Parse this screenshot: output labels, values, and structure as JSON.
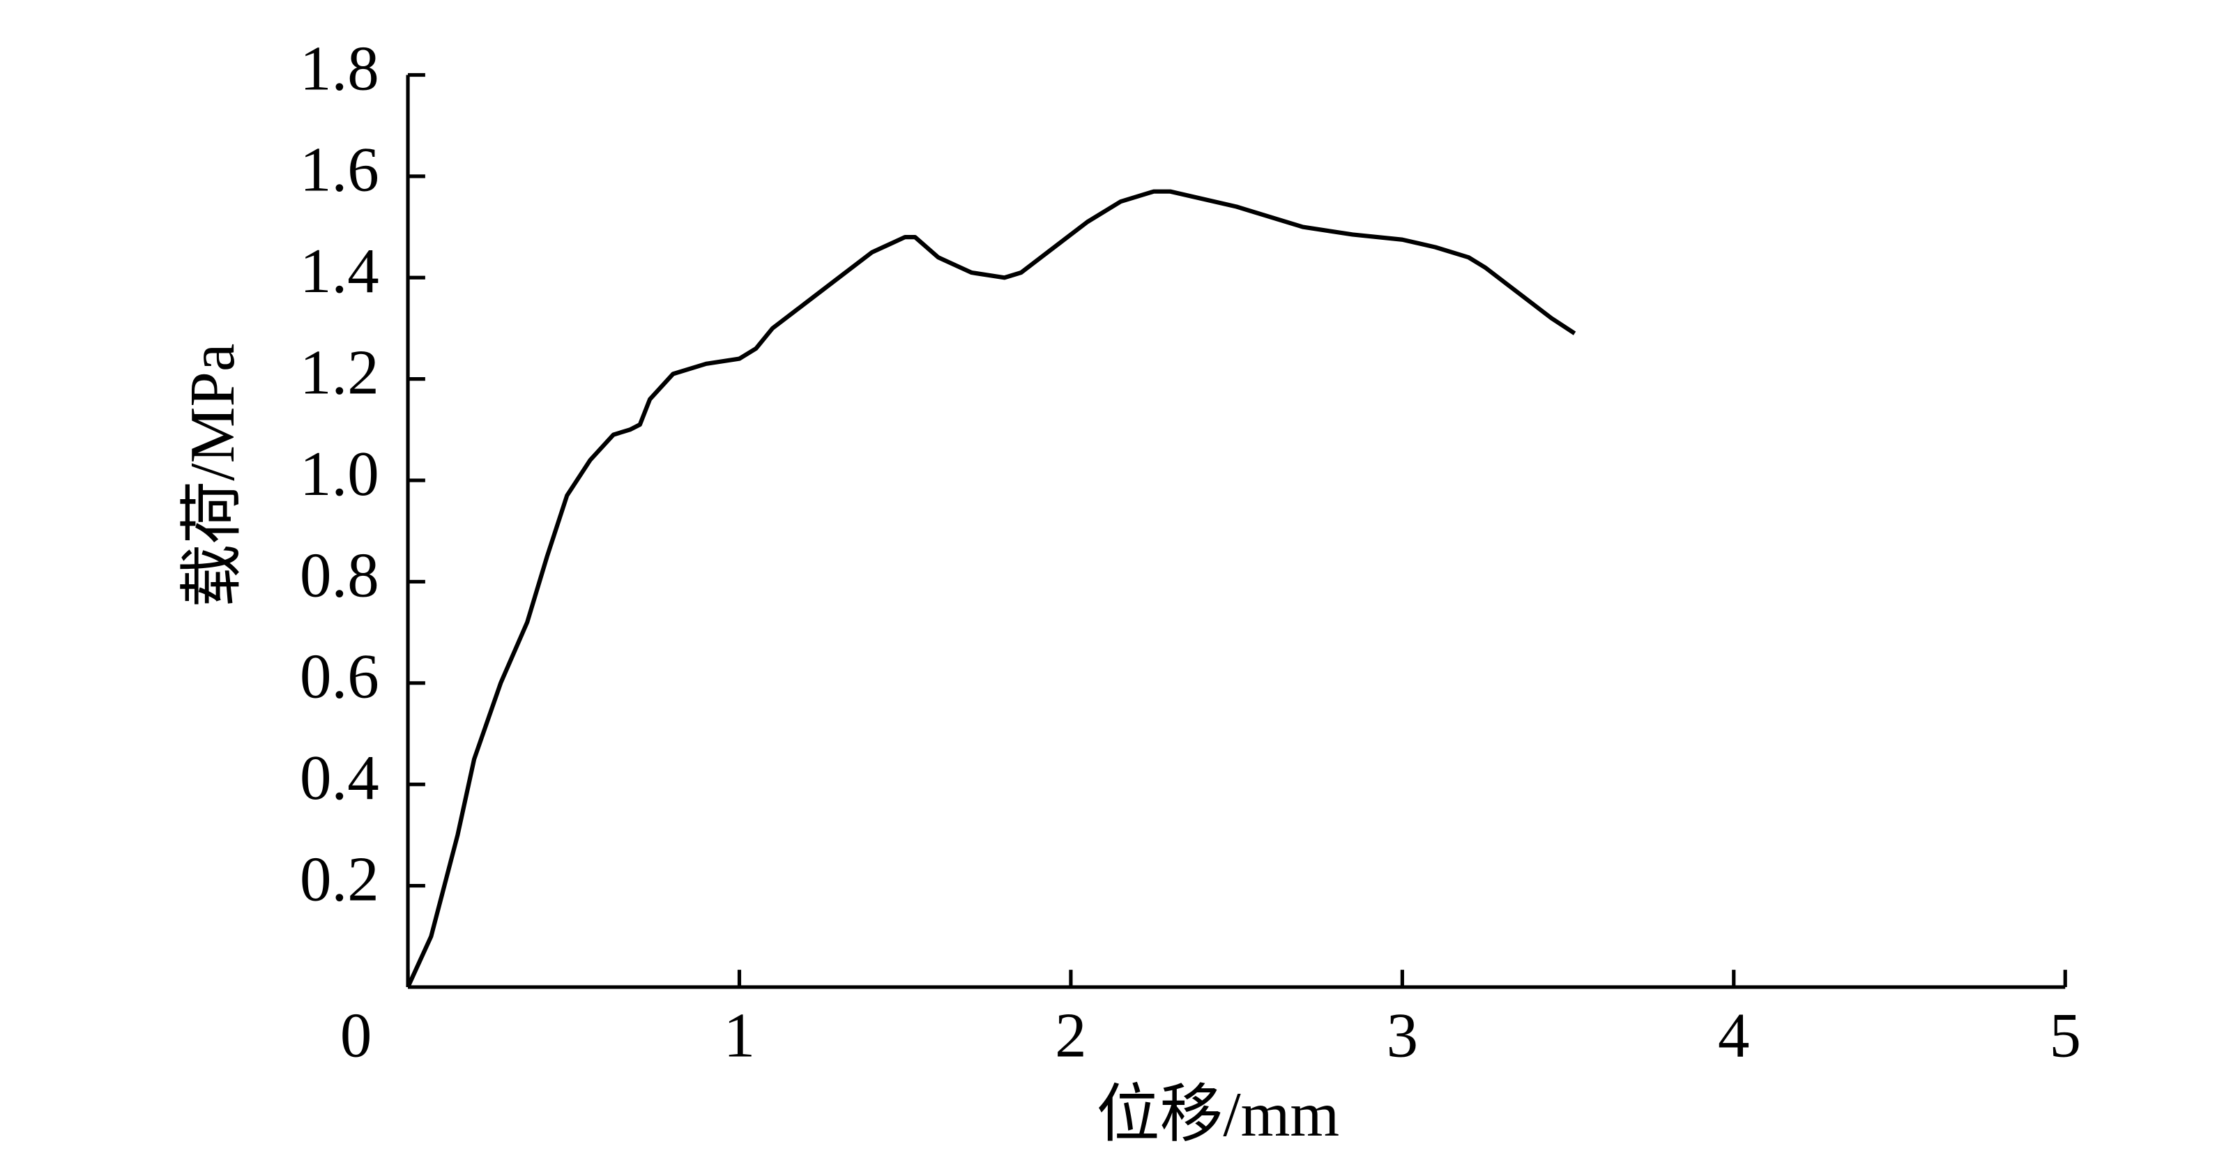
{
  "chart_data": {
    "type": "line",
    "x_label": "位移/mm",
    "y_label": "载荷/MPa",
    "x": [
      0,
      0.07,
      0.13,
      0.15,
      0.2,
      0.28,
      0.36,
      0.42,
      0.48,
      0.55,
      0.62,
      0.67,
      0.7,
      0.73,
      0.8,
      0.9,
      1.0,
      1.05,
      1.1,
      1.2,
      1.3,
      1.4,
      1.5,
      1.53,
      1.6,
      1.7,
      1.8,
      1.85,
      1.95,
      2.05,
      2.15,
      2.25,
      2.3,
      2.5,
      2.7,
      2.85,
      3.0,
      3.1,
      3.2,
      3.25,
      3.35,
      3.45,
      3.52
    ],
    "series": [
      {
        "color": "#000000",
        "values": [
          0,
          0.1,
          0.25,
          0.3,
          0.45,
          0.6,
          0.72,
          0.85,
          0.97,
          1.04,
          1.09,
          1.1,
          1.11,
          1.16,
          1.21,
          1.23,
          1.24,
          1.26,
          1.3,
          1.35,
          1.4,
          1.45,
          1.48,
          1.48,
          1.44,
          1.41,
          1.4,
          1.41,
          1.46,
          1.51,
          1.55,
          1.57,
          1.57,
          1.54,
          1.5,
          1.485,
          1.475,
          1.46,
          1.44,
          1.42,
          1.37,
          1.32,
          1.29
        ]
      }
    ],
    "xlim": [
      0,
      5
    ],
    "xticks": [
      0,
      1,
      2,
      3,
      4,
      5
    ],
    "ylim": [
      0,
      1.8
    ],
    "yticks": [
      0.2,
      0.4,
      0.6,
      0.8,
      {
        "value": 1,
        "label": "1.0"
      },
      1.2,
      1.4,
      1.6,
      1.8
    ],
    "grid": false
  }
}
